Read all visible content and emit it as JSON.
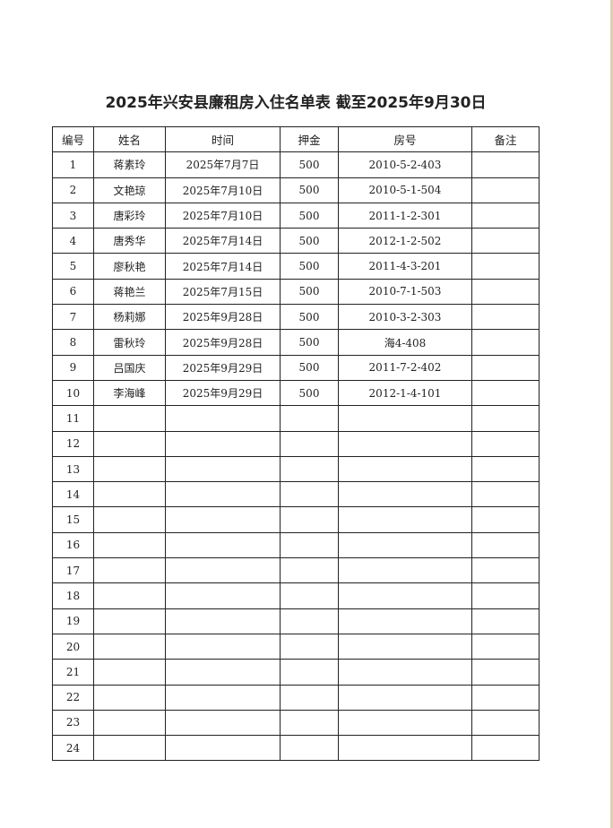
{
  "title": "2025年兴安县廉租房入住名单表 截至2025年9月30日",
  "columns": [
    "编号",
    "姓名",
    "时间",
    "押金",
    "房号",
    "备注"
  ],
  "rows": [
    [
      "1",
      "蒋素玲",
      "2025年7月7日",
      "500",
      "2010-5-2-403",
      ""
    ],
    [
      "2",
      "文艳琼",
      "2025年7月10日",
      "500",
      "2010-5-1-504",
      ""
    ],
    [
      "3",
      "唐彩玲",
      "2025年7月10日",
      "500",
      "2011-1-2-301",
      ""
    ],
    [
      "4",
      "唐秀华",
      "2025年7月14日",
      "500",
      "2012-1-2-502",
      ""
    ],
    [
      "5",
      "廖秋艳",
      "2025年7月14日",
      "500",
      "2011-4-3-201",
      ""
    ],
    [
      "6",
      "蒋艳兰",
      "2025年7月15日",
      "500",
      "2010-7-1-503",
      ""
    ],
    [
      "7",
      "杨莉娜",
      "2025年9月28日",
      "500",
      "2010-3-2-303",
      ""
    ],
    [
      "8",
      "雷秋玲",
      "2025年9月28日",
      "500",
      "海4-408",
      ""
    ],
    [
      "9",
      "吕国庆",
      "2025年9月29日",
      "500",
      "2011-7-2-402",
      ""
    ],
    [
      "10",
      "李海峰",
      "2025年9月29日",
      "500",
      "2012-1-4-101",
      ""
    ],
    [
      "11",
      "",
      "",
      "",
      "",
      ""
    ],
    [
      "12",
      "",
      "",
      "",
      "",
      ""
    ],
    [
      "13",
      "",
      "",
      "",
      "",
      ""
    ],
    [
      "14",
      "",
      "",
      "",
      "",
      ""
    ],
    [
      "15",
      "",
      "",
      "",
      "",
      ""
    ],
    [
      "16",
      "",
      "",
      "",
      "",
      ""
    ],
    [
      "17",
      "",
      "",
      "",
      "",
      ""
    ],
    [
      "18",
      "",
      "",
      "",
      "",
      ""
    ],
    [
      "19",
      "",
      "",
      "",
      "",
      ""
    ],
    [
      "20",
      "",
      "",
      "",
      "",
      ""
    ],
    [
      "21",
      "",
      "",
      "",
      "",
      ""
    ],
    [
      "22",
      "",
      "",
      "",
      "",
      ""
    ],
    [
      "23",
      "",
      "",
      "",
      "",
      ""
    ],
    [
      "24",
      "",
      "",
      "",
      "",
      ""
    ]
  ]
}
